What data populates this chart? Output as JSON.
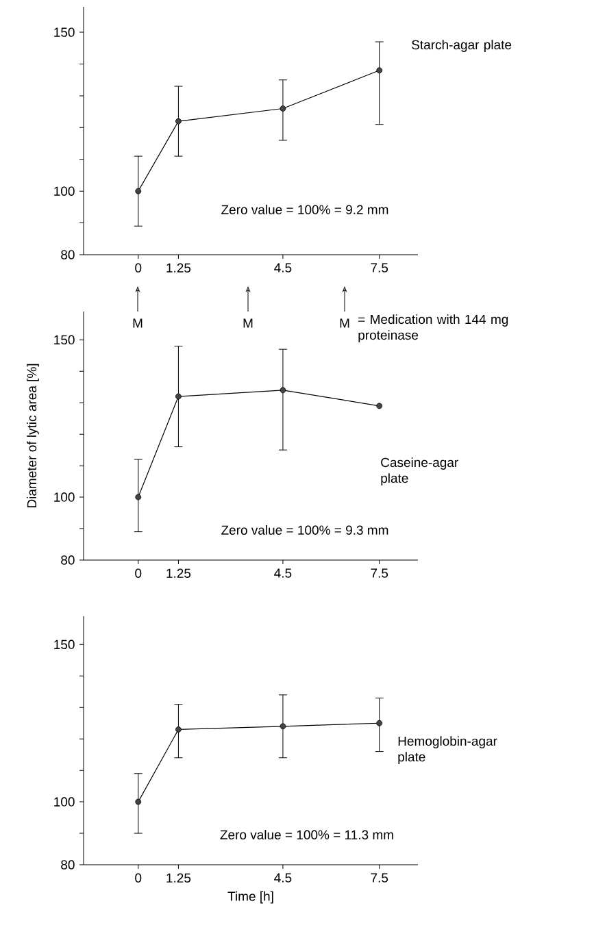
{
  "chart_data": [
    {
      "type": "line",
      "title": "Starch-agar plate",
      "x": [
        0,
        1.25,
        4.5,
        7.5
      ],
      "values": [
        100,
        122,
        126,
        138
      ],
      "errors": [
        [
          89,
          111
        ],
        [
          111,
          133
        ],
        [
          116,
          135
        ],
        [
          121,
          147
        ]
      ],
      "color": "#444444",
      "marker": "circle",
      "xlim": [
        -1.7,
        8.7
      ],
      "ylim": [
        80,
        158
      ],
      "xticks": [
        0,
        1.25,
        4.5,
        7.5
      ],
      "yticks": [
        80,
        {
          "value": 90,
          "label": null
        },
        100,
        {
          "value": 110,
          "label": null
        },
        {
          "value": 120,
          "label": null
        },
        {
          "value": 130,
          "label": null
        },
        {
          "value": 140,
          "label": null
        },
        150
      ],
      "annotations": [
        "Zero value = 100% = 9.2 mm",
        "M",
        "M",
        "M",
        "= Medication with 144 mg proteinase"
      ]
    },
    {
      "type": "line",
      "title": "Caseine-agar plate",
      "ylabel": "Diameter of lytic area [%]",
      "x": [
        0,
        1.25,
        4.5,
        7.5
      ],
      "values": [
        100,
        132,
        134,
        129
      ],
      "errors": [
        [
          89,
          112
        ],
        [
          116,
          148
        ],
        [
          115,
          147
        ],
        null
      ],
      "color": "#444444",
      "marker": "circle",
      "xlim": [
        -1.7,
        8.7
      ],
      "ylim": [
        80,
        159
      ],
      "xticks": [
        0,
        1.25,
        4.5,
        7.5
      ],
      "yticks": [
        80,
        {
          "value": 90,
          "label": null
        },
        100,
        {
          "value": 110,
          "label": null
        },
        {
          "value": 120,
          "label": null
        },
        {
          "value": 130,
          "label": null
        },
        {
          "value": 140,
          "label": null
        },
        150
      ],
      "annotations": [
        "Zero value = 100% = 9.3 mm"
      ]
    },
    {
      "type": "line",
      "title": "Hemoglobin-agar plate",
      "xlabel": "Time [h]",
      "x": [
        0,
        1.25,
        4.5,
        7.5
      ],
      "values": [
        100,
        123,
        124,
        125
      ],
      "errors": [
        [
          90,
          109
        ],
        [
          114,
          131
        ],
        [
          114,
          134
        ],
        [
          116,
          133
        ]
      ],
      "color": "#444444",
      "marker": "circle",
      "xlim": [
        -1.7,
        8.7
      ],
      "ylim": [
        80,
        159
      ],
      "xticks": [
        0,
        1.25,
        4.5,
        7.5
      ],
      "yticks": [
        80,
        {
          "value": 90,
          "label": null
        },
        100,
        {
          "value": 110,
          "label": null
        },
        {
          "value": 120,
          "label": null
        },
        {
          "value": 130,
          "label": null
        },
        {
          "value": 140,
          "label": null
        },
        150
      ],
      "annotations": [
        "Zero value = 100% = 11.3 mm"
      ]
    }
  ]
}
